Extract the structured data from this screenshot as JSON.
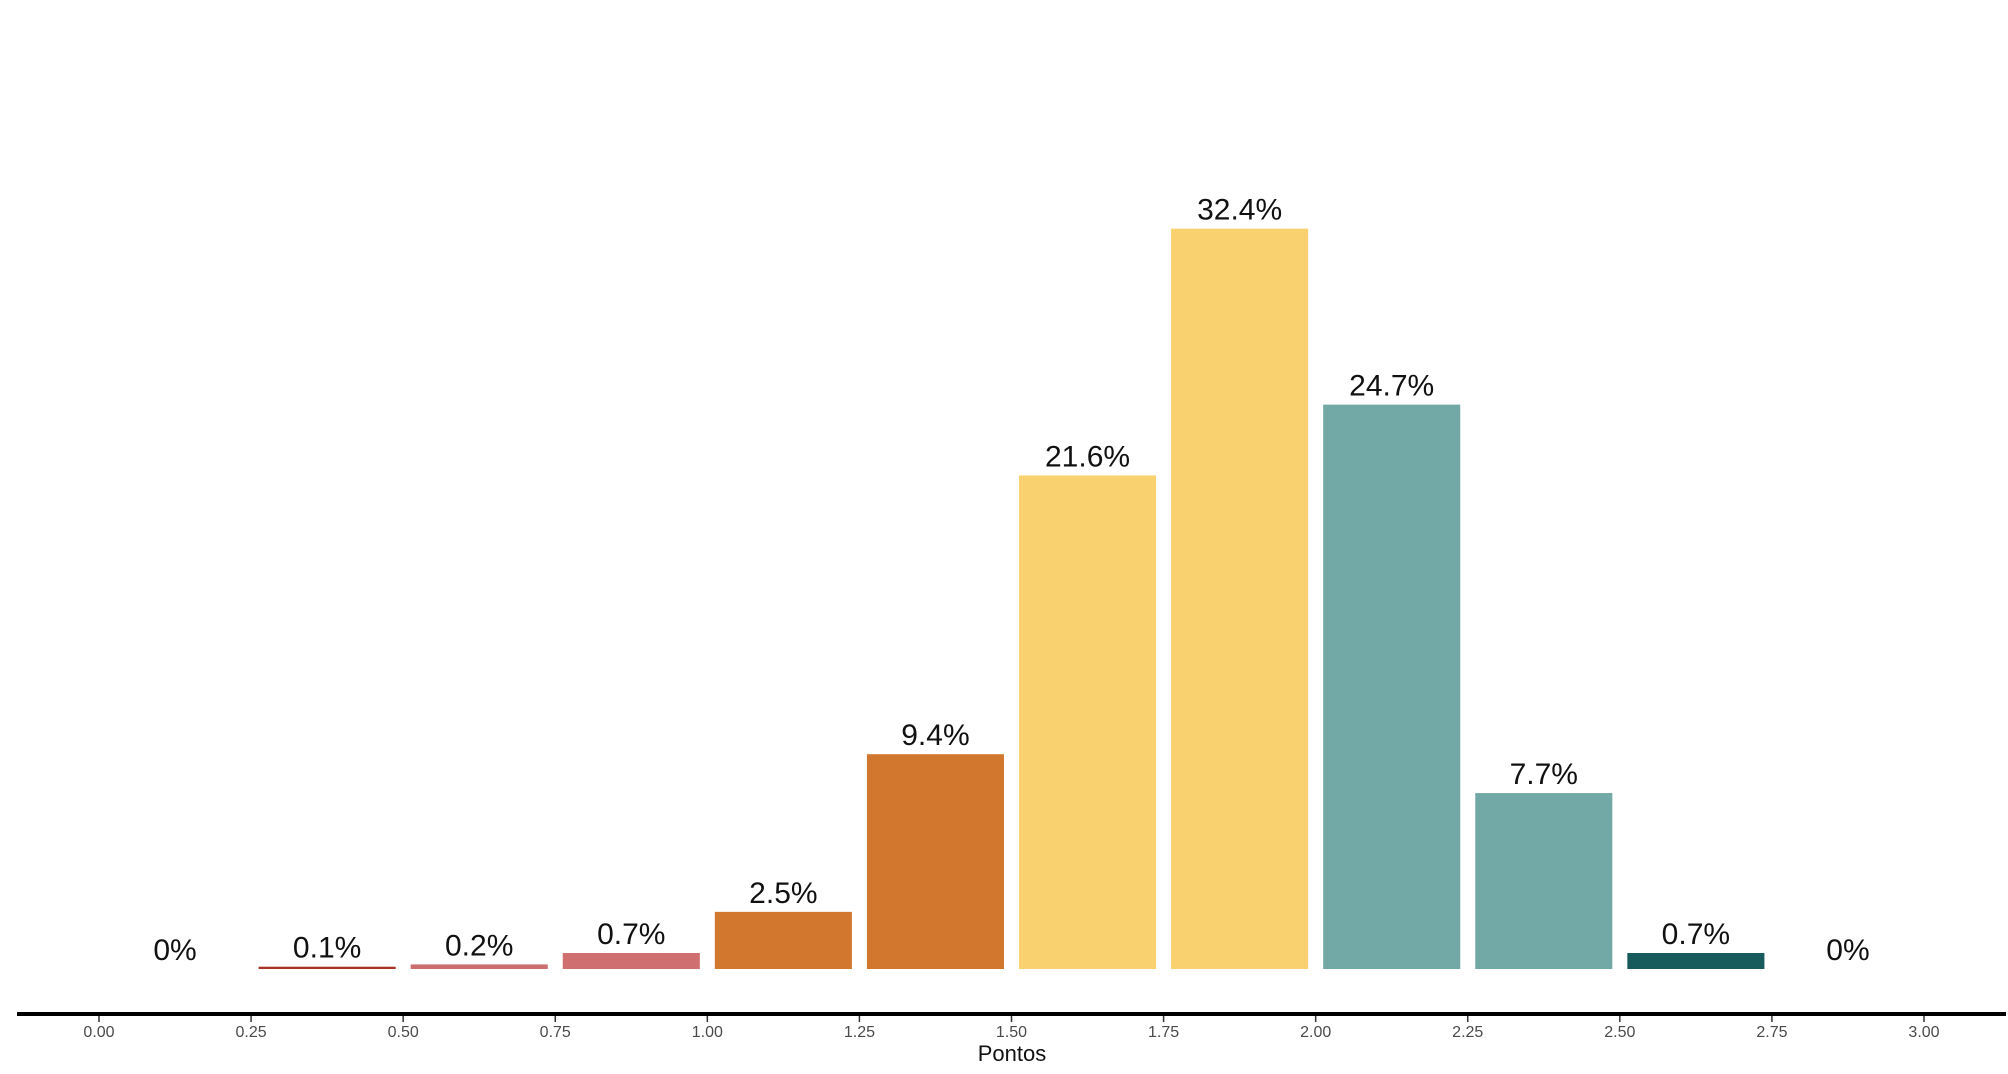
{
  "chart_data": {
    "type": "bar",
    "xlabel": "Pontos",
    "xlim": [
      0.0,
      3.0
    ],
    "x_ticks": [
      "0.00",
      "0.25",
      "0.50",
      "0.75",
      "1.00",
      "1.25",
      "1.50",
      "1.75",
      "2.00",
      "2.25",
      "2.50",
      "2.75",
      "3.00"
    ],
    "bins": [
      {
        "start": 0.0,
        "end": 0.25,
        "value": 0.0,
        "label": "0%",
        "color": "#c0392b"
      },
      {
        "start": 0.25,
        "end": 0.5,
        "value": 0.1,
        "label": "0.1%",
        "color": "#a93226"
      },
      {
        "start": 0.5,
        "end": 0.75,
        "value": 0.2,
        "label": "0.2%",
        "color": "#cd6e6e"
      },
      {
        "start": 0.75,
        "end": 1.0,
        "value": 0.7,
        "label": "0.7%",
        "color": "#d06f6f"
      },
      {
        "start": 1.0,
        "end": 1.25,
        "value": 2.5,
        "label": "2.5%",
        "color": "#d2772e"
      },
      {
        "start": 1.25,
        "end": 1.5,
        "value": 9.4,
        "label": "9.4%",
        "color": "#d2772e"
      },
      {
        "start": 1.5,
        "end": 1.75,
        "value": 21.6,
        "label": "21.6%",
        "color": "#fad16f"
      },
      {
        "start": 1.75,
        "end": 2.0,
        "value": 32.4,
        "label": "32.4%",
        "color": "#fad16f"
      },
      {
        "start": 2.0,
        "end": 2.25,
        "value": 24.7,
        "label": "24.7%",
        "color": "#72a9a6"
      },
      {
        "start": 2.25,
        "end": 2.5,
        "value": 7.7,
        "label": "7.7%",
        "color": "#72a9a6"
      },
      {
        "start": 2.5,
        "end": 2.75,
        "value": 0.7,
        "label": "0.7%",
        "color": "#175b5c"
      },
      {
        "start": 2.75,
        "end": 3.0,
        "value": 0.0,
        "label": "0%",
        "color": "#175b5c"
      }
    ]
  }
}
